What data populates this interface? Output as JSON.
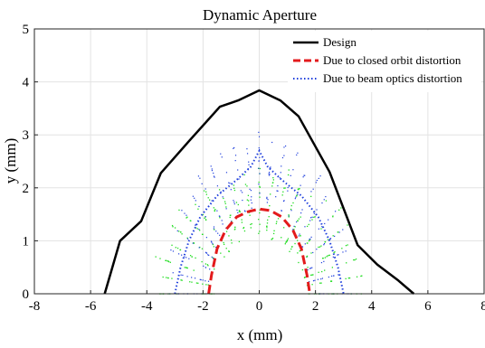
{
  "chart_data": {
    "type": "line",
    "title": "Dynamic Aperture",
    "xlabel": "x (mm)",
    "ylabel": "y (mm)",
    "xlim": [
      -8,
      8
    ],
    "ylim": [
      0,
      5
    ],
    "xticks": [
      "-8",
      "-6",
      "-4",
      "-2",
      "0",
      "2",
      "4",
      "6",
      "8"
    ],
    "yticks": [
      "0",
      "1",
      "2",
      "3",
      "4",
      "5"
    ],
    "grid": true,
    "legend_position": "top-right",
    "series": [
      {
        "name": "Design",
        "color": "#000000",
        "style": "solid",
        "x": [
          -5.5,
          -4.95,
          -4.2,
          -3.5,
          -2.5,
          -1.4,
          -0.75,
          0,
          0.75,
          1.4,
          2.5,
          3.5,
          4.2,
          4.95,
          5.5
        ],
        "y": [
          0,
          1.0,
          1.37,
          2.28,
          2.88,
          3.53,
          3.65,
          3.84,
          3.65,
          3.35,
          2.3,
          0.92,
          0.55,
          0.25,
          0
        ]
      },
      {
        "name": "Due to closed orbit distortion",
        "color": "#e31a1c",
        "style": "dashed",
        "x": [
          -1.8,
          -1.7,
          -1.5,
          -1.2,
          -0.8,
          -0.4,
          0,
          0.4,
          0.8,
          1.2,
          1.5,
          1.7,
          1.8
        ],
        "y": [
          0,
          0.35,
          0.85,
          1.2,
          1.45,
          1.55,
          1.6,
          1.57,
          1.45,
          1.2,
          0.85,
          0.35,
          0
        ]
      },
      {
        "name": "Due to beam optics distortion",
        "color": "#1f3fdc",
        "style": "dotted",
        "x": [
          -3.0,
          -2.8,
          -2.5,
          -2.1,
          -1.5,
          -0.8,
          -0.3,
          0,
          0.3,
          0.8,
          1.5,
          2.1,
          2.5,
          2.8,
          3.0
        ],
        "y": [
          0,
          0.5,
          1.0,
          1.45,
          1.85,
          2.15,
          2.4,
          2.7,
          2.4,
          2.15,
          1.85,
          1.45,
          1.0,
          0.5,
          0
        ]
      }
    ],
    "scatter_color": "#22dd22"
  }
}
